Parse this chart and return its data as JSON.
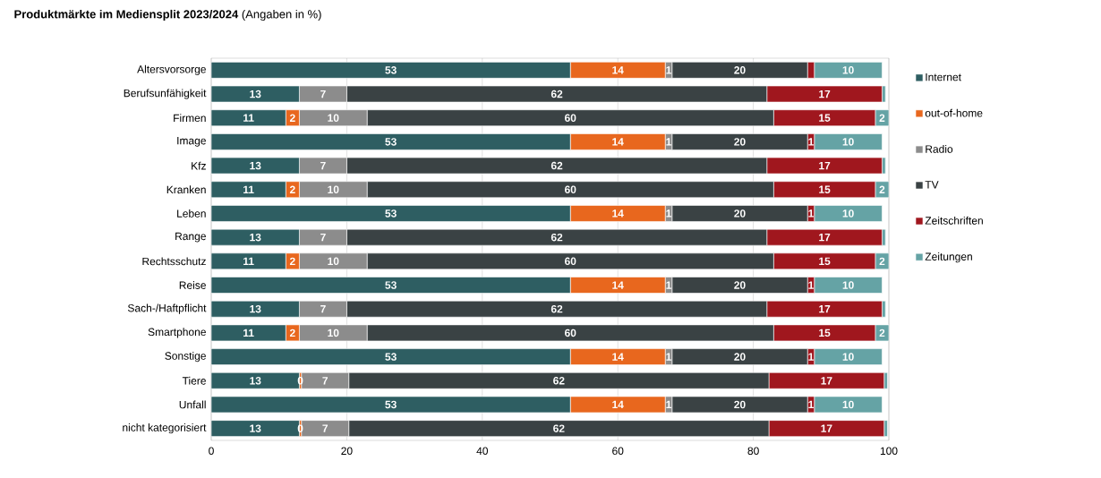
{
  "chart_data": {
    "type": "bar",
    "orientation": "horizontal",
    "stacked": true,
    "title": "**Produktmärkte im Mediensplit 2023/2024** (Angaben in %)",
    "categories": [
      "Altersvorsorge",
      "Berufsunfähigkeit",
      "Firmen",
      "Image",
      "Kfz",
      "Kranken",
      "Leben",
      "Range",
      "Rechtsschutz",
      "Reise",
      "Sach-/Haftpflicht",
      "Smartphone",
      "Sonstige",
      "Tiere",
      "Unfall",
      "nicht kategorisiert"
    ],
    "series": [
      {
        "name": "Internet",
        "color": "#2e5e62",
        "values": [
          53,
          13,
          11,
          53,
          13,
          11,
          53,
          13,
          11,
          53,
          13,
          11,
          53,
          13,
          53,
          13
        ],
        "value_labels": [
          "53",
          "13",
          "11",
          "53",
          "13",
          "11",
          "53",
          "13",
          "11",
          "53",
          "13",
          "11",
          "53",
          "13",
          "53",
          "13"
        ]
      },
      {
        "name": "out-of-home",
        "color": "#e8671e",
        "values": [
          14,
          0,
          2,
          14,
          0,
          2,
          14,
          0,
          2,
          14,
          0,
          2,
          14,
          0.3,
          14,
          0.3
        ],
        "value_labels": [
          "14",
          null,
          "2",
          "14",
          null,
          "2",
          "14",
          null,
          "2",
          "14",
          null,
          "2",
          "14",
          "0",
          "14",
          "0"
        ]
      },
      {
        "name": "Radio",
        "color": "#8c8c8c",
        "values": [
          1,
          7,
          10,
          1,
          7,
          10,
          1,
          7,
          10,
          1,
          7,
          10,
          1,
          7,
          1,
          7
        ],
        "value_labels": [
          "1",
          "7",
          "10",
          "1",
          "7",
          "10",
          "1",
          "7",
          "10",
          "1",
          "7",
          "10",
          "1",
          "7",
          "1",
          "7"
        ]
      },
      {
        "name": "TV",
        "color": "#3a4244",
        "values": [
          20,
          62,
          60,
          20,
          62,
          60,
          20,
          62,
          60,
          20,
          62,
          60,
          20,
          62,
          20,
          62
        ],
        "value_labels": [
          "20",
          "62",
          "60",
          "20",
          "62",
          "60",
          "20",
          "62",
          "60",
          "20",
          "62",
          "60",
          "20",
          "62",
          "20",
          "62"
        ]
      },
      {
        "name": "Zeitschriften",
        "color": "#a0171e",
        "values": [
          1,
          17,
          15,
          1,
          17,
          15,
          1,
          17,
          15,
          1,
          17,
          15,
          1,
          17,
          1,
          17
        ],
        "value_labels": [
          null,
          "17",
          "15",
          "1",
          "17",
          "15",
          "1",
          "17",
          "15",
          "1",
          "17",
          "15",
          "1",
          "17",
          "1",
          "17"
        ]
      },
      {
        "name": "Zeitungen",
        "color": "#65a3a5",
        "values": [
          10,
          0.5,
          2,
          10,
          0.5,
          2,
          10,
          0.5,
          2,
          10,
          0.5,
          2,
          10,
          0.5,
          10,
          0.5
        ],
        "value_labels": [
          "10",
          null,
          "2",
          "10",
          null,
          "2",
          "10",
          null,
          "2",
          "10",
          null,
          "2",
          "10",
          null,
          "10",
          null
        ]
      }
    ],
    "xlim": [
      0,
      100
    ],
    "xticks": [
      0,
      20,
      40,
      60,
      80,
      100
    ],
    "grid": "x",
    "legend": "right"
  }
}
